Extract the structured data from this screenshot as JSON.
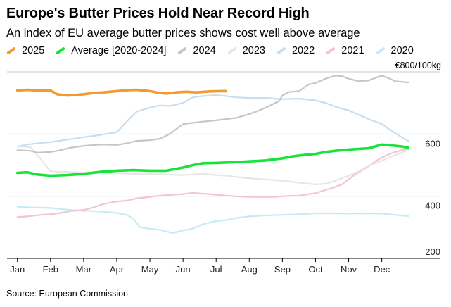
{
  "title": "Europe's Butter Prices Hold Near Record High",
  "subtitle": "An index of EU average butter prices shows cost well above average",
  "unit_label": "€800/100kg",
  "source": "Source: European Commission",
  "chart_data": {
    "type": "line",
    "ylim": [
      200,
      850
    ],
    "y_ticks": [
      200,
      400,
      600,
      800
    ],
    "y_tick_labels": [
      "200",
      "400",
      "600"
    ],
    "x_ticks": [
      {
        "label": "Jan",
        "pos": 0
      },
      {
        "label": "Feb",
        "pos": 1
      },
      {
        "label": "Mar",
        "pos": 2
      },
      {
        "label": "Apr",
        "pos": 3
      },
      {
        "label": "May",
        "pos": 4
      },
      {
        "label": "Jun",
        "pos": 5
      },
      {
        "label": "Jul",
        "pos": 6
      },
      {
        "label": "Aug",
        "pos": 7
      },
      {
        "label": "Sep",
        "pos": 8
      },
      {
        "label": "Oct",
        "pos": 9
      },
      {
        "label": "Nov",
        "pos": 10
      },
      {
        "label": "Dec",
        "pos": 11
      }
    ],
    "xlim": [
      -0.1,
      11.9
    ],
    "series": [
      {
        "name": "2020",
        "color": "#c4ecf2",
        "width": 2.2,
        "points": [
          [
            0,
            366
          ],
          [
            0.4,
            364
          ],
          [
            1,
            362
          ],
          [
            1.5,
            357
          ],
          [
            2,
            353
          ],
          [
            2.5,
            351
          ],
          [
            3,
            346
          ],
          [
            3.3,
            340
          ],
          [
            3.5,
            328
          ],
          [
            3.7,
            300
          ],
          [
            4,
            295
          ],
          [
            4.3,
            292
          ],
          [
            4.5,
            286
          ],
          [
            4.7,
            282
          ],
          [
            5,
            290
          ],
          [
            5.3,
            296
          ],
          [
            5.6,
            310
          ],
          [
            6,
            320
          ],
          [
            6.3,
            323
          ],
          [
            6.6,
            330
          ],
          [
            7,
            335
          ],
          [
            7.4,
            338
          ],
          [
            8,
            340
          ],
          [
            8.5,
            342
          ],
          [
            9,
            345
          ],
          [
            9.5,
            345
          ],
          [
            10,
            344
          ],
          [
            10.5,
            345
          ],
          [
            11,
            344
          ],
          [
            11.3,
            341
          ],
          [
            11.6,
            338
          ],
          [
            11.8,
            336
          ]
        ]
      },
      {
        "name": "2021",
        "color": "#f5c3d3",
        "width": 2.2,
        "points": [
          [
            0,
            333
          ],
          [
            0.3,
            335
          ],
          [
            0.7,
            340
          ],
          [
            1,
            342
          ],
          [
            1.3,
            346
          ],
          [
            1.6,
            352
          ],
          [
            2,
            356
          ],
          [
            2.3,
            364
          ],
          [
            2.6,
            375
          ],
          [
            3,
            383
          ],
          [
            3.3,
            386
          ],
          [
            3.6,
            393
          ],
          [
            4,
            398
          ],
          [
            4.3,
            402
          ],
          [
            4.6,
            404
          ],
          [
            5,
            407
          ],
          [
            5.3,
            411
          ],
          [
            5.6,
            408
          ],
          [
            6,
            405
          ],
          [
            6.3,
            402
          ],
          [
            6.7,
            399
          ],
          [
            7,
            398
          ],
          [
            7.4,
            398
          ],
          [
            7.8,
            398
          ],
          [
            8,
            400
          ],
          [
            8.5,
            402
          ],
          [
            9,
            410
          ],
          [
            9.3,
            420
          ],
          [
            9.5,
            426
          ],
          [
            9.8,
            438
          ],
          [
            10,
            455
          ],
          [
            10.2,
            470
          ],
          [
            10.4,
            483
          ],
          [
            10.6,
            496
          ],
          [
            10.8,
            512
          ],
          [
            11,
            524
          ],
          [
            11.2,
            534
          ],
          [
            11.4,
            542
          ],
          [
            11.6,
            548
          ],
          [
            11.8,
            552
          ]
        ]
      },
      {
        "name": "2022",
        "color": "#c7ddf0",
        "width": 2.2,
        "points": [
          [
            0,
            560
          ],
          [
            0.3,
            566
          ],
          [
            0.6,
            570
          ],
          [
            1,
            574
          ],
          [
            1.5,
            582
          ],
          [
            2,
            590
          ],
          [
            2.5,
            597
          ],
          [
            3,
            606
          ],
          [
            3.3,
            640
          ],
          [
            3.6,
            672
          ],
          [
            4,
            685
          ],
          [
            4.3,
            692
          ],
          [
            4.6,
            690
          ],
          [
            5,
            700
          ],
          [
            5.3,
            718
          ],
          [
            5.6,
            722
          ],
          [
            6,
            725
          ],
          [
            6.3,
            722
          ],
          [
            6.6,
            718
          ],
          [
            7,
            716
          ],
          [
            7.5,
            716
          ],
          [
            8,
            712
          ],
          [
            8.5,
            714
          ],
          [
            9,
            708
          ],
          [
            9.3,
            700
          ],
          [
            9.6,
            688
          ],
          [
            10,
            676
          ],
          [
            10.3,
            662
          ],
          [
            10.6,
            648
          ],
          [
            11,
            632
          ],
          [
            11.3,
            610
          ],
          [
            11.6,
            590
          ],
          [
            11.8,
            578
          ]
        ]
      },
      {
        "name": "2023",
        "color": "#e6e6e6",
        "width": 2.2,
        "points": [
          [
            0,
            560
          ],
          [
            0.4,
            558
          ],
          [
            0.7,
            520
          ],
          [
            1,
            480
          ],
          [
            1.5,
            478
          ],
          [
            2,
            476
          ],
          [
            2.5,
            476
          ],
          [
            3,
            474
          ],
          [
            3.5,
            472
          ],
          [
            4,
            472
          ],
          [
            4.5,
            470
          ],
          [
            5,
            468
          ],
          [
            5.3,
            470
          ],
          [
            5.6,
            472
          ],
          [
            6,
            468
          ],
          [
            6.3,
            466
          ],
          [
            6.6,
            462
          ],
          [
            7,
            458
          ],
          [
            7.5,
            454
          ],
          [
            8,
            450
          ],
          [
            8.3,
            446
          ],
          [
            8.6,
            442
          ],
          [
            9,
            438
          ],
          [
            9.3,
            440
          ],
          [
            9.6,
            450
          ],
          [
            10,
            466
          ],
          [
            10.3,
            480
          ],
          [
            10.6,
            498
          ],
          [
            11,
            514
          ],
          [
            11.3,
            528
          ],
          [
            11.6,
            540
          ],
          [
            11.8,
            548
          ]
        ]
      },
      {
        "name": "2024",
        "color": "#c6c6c6",
        "width": 2.2,
        "points": [
          [
            0,
            548
          ],
          [
            0.4,
            546
          ],
          [
            0.6,
            540
          ],
          [
            1,
            542
          ],
          [
            1.3,
            548
          ],
          [
            1.6,
            556
          ],
          [
            2,
            562
          ],
          [
            2.5,
            566
          ],
          [
            3,
            565
          ],
          [
            3.3,
            570
          ],
          [
            3.6,
            578
          ],
          [
            4,
            580
          ],
          [
            4.3,
            585
          ],
          [
            4.6,
            600
          ],
          [
            5,
            632
          ],
          [
            5.3,
            636
          ],
          [
            5.6,
            640
          ],
          [
            6,
            644
          ],
          [
            6.3,
            648
          ],
          [
            6.6,
            652
          ],
          [
            7,
            664
          ],
          [
            7.3,
            676
          ],
          [
            7.6,
            690
          ],
          [
            7.9,
            706
          ],
          [
            8,
            724
          ],
          [
            8.2,
            735
          ],
          [
            8.5,
            738
          ],
          [
            8.8,
            760
          ],
          [
            9,
            764
          ],
          [
            9.3,
            778
          ],
          [
            9.6,
            788
          ],
          [
            9.8,
            786
          ],
          [
            10,
            778
          ],
          [
            10.3,
            770
          ],
          [
            10.6,
            772
          ],
          [
            10.8,
            780
          ],
          [
            11,
            788
          ],
          [
            11.2,
            780
          ],
          [
            11.4,
            770
          ],
          [
            11.6,
            768
          ],
          [
            11.8,
            766
          ]
        ]
      },
      {
        "name": "Average [2020-2024]",
        "color": "#17e33a",
        "width": 3.6,
        "points": [
          [
            0,
            475
          ],
          [
            0.3,
            477
          ],
          [
            0.6,
            470
          ],
          [
            1,
            466
          ],
          [
            1.5,
            468
          ],
          [
            2,
            472
          ],
          [
            2.5,
            478
          ],
          [
            3,
            482
          ],
          [
            3.5,
            484
          ],
          [
            4,
            482
          ],
          [
            4.5,
            482
          ],
          [
            5,
            492
          ],
          [
            5.3,
            500
          ],
          [
            5.6,
            506
          ],
          [
            6,
            507
          ],
          [
            6.5,
            509
          ],
          [
            7,
            512
          ],
          [
            7.5,
            515
          ],
          [
            8,
            522
          ],
          [
            8.3,
            528
          ],
          [
            8.6,
            532
          ],
          [
            9,
            536
          ],
          [
            9.3,
            542
          ],
          [
            9.6,
            546
          ],
          [
            10,
            550
          ],
          [
            10.3,
            552
          ],
          [
            10.6,
            554
          ],
          [
            10.8,
            560
          ],
          [
            11,
            566
          ],
          [
            11.2,
            564
          ],
          [
            11.4,
            562
          ],
          [
            11.6,
            560
          ],
          [
            11.8,
            556
          ]
        ]
      },
      {
        "name": "2025",
        "color": "#f29a2e",
        "width": 3.6,
        "points": [
          [
            0,
            740
          ],
          [
            0.3,
            742
          ],
          [
            0.6,
            740
          ],
          [
            1,
            740
          ],
          [
            1.2,
            728
          ],
          [
            1.5,
            724
          ],
          [
            1.8,
            726
          ],
          [
            2,
            728
          ],
          [
            2.3,
            732
          ],
          [
            2.6,
            734
          ],
          [
            3,
            738
          ],
          [
            3.3,
            741
          ],
          [
            3.6,
            742
          ],
          [
            4,
            738
          ],
          [
            4.3,
            732
          ],
          [
            4.5,
            730
          ],
          [
            4.8,
            734
          ],
          [
            5.1,
            736
          ],
          [
            5.4,
            734
          ],
          [
            5.8,
            737
          ],
          [
            6.1,
            738
          ],
          [
            6.3,
            738
          ]
        ]
      }
    ]
  },
  "legend": [
    {
      "name": "2025",
      "color": "#f29a2e"
    },
    {
      "name": "Average [2020-2024]",
      "color": "#17e33a"
    },
    {
      "name": "2024",
      "color": "#c6c6c6"
    },
    {
      "name": "2023",
      "color": "#e6e6e6"
    },
    {
      "name": "2022",
      "color": "#c7ddf0"
    },
    {
      "name": "2021",
      "color": "#f5c3d3"
    },
    {
      "name": "2020",
      "color": "#c4ecf2"
    }
  ]
}
